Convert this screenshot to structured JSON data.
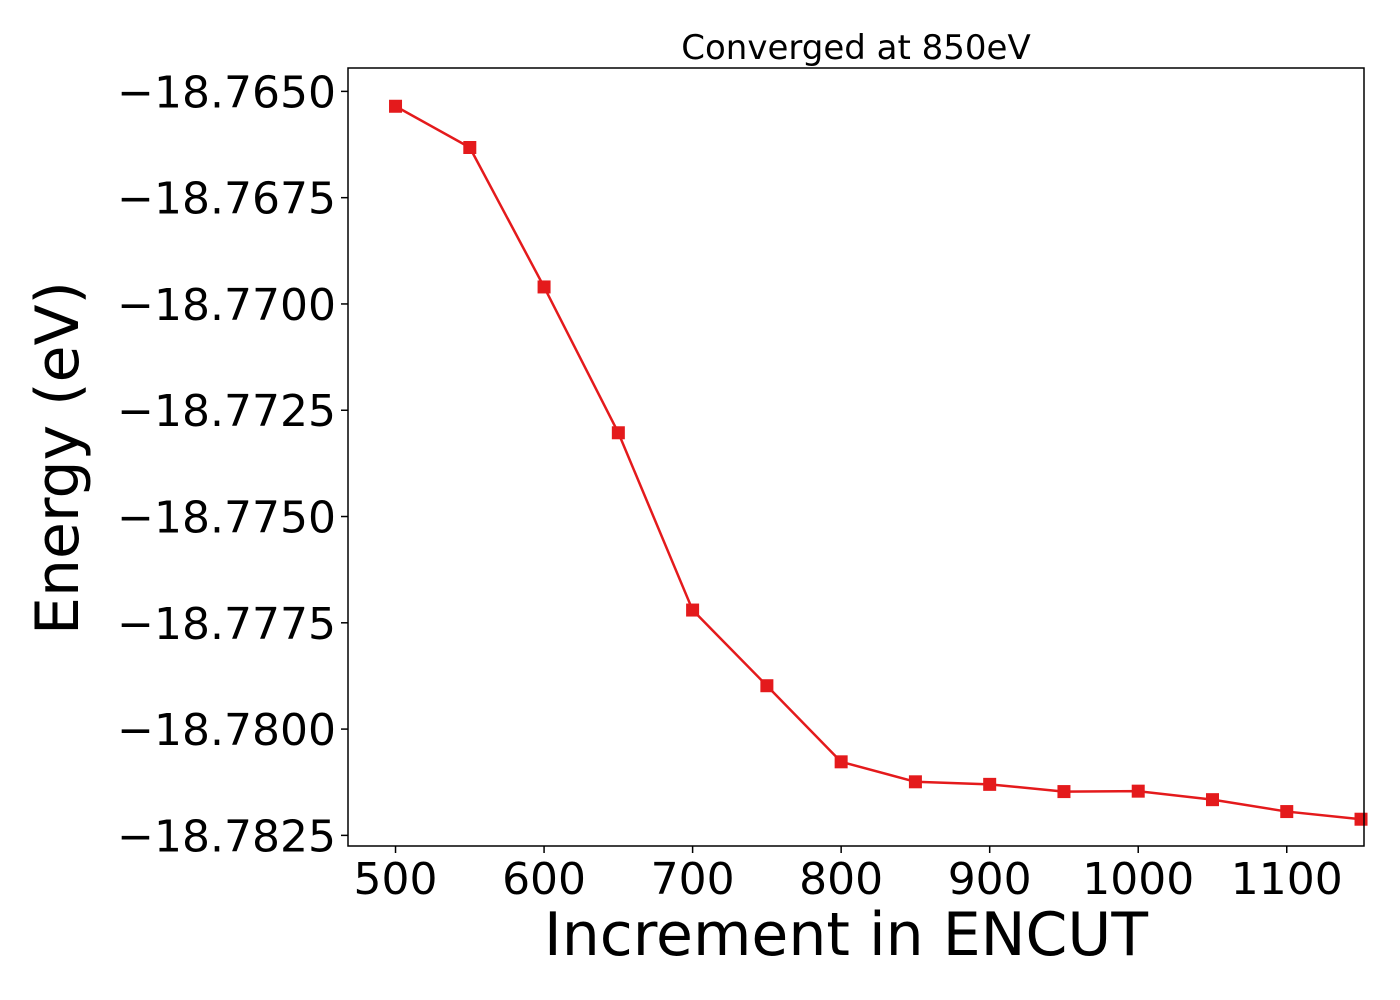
{
  "chart_data": {
    "type": "line",
    "title": "Converged at 850eV",
    "xlabel": "Increment in ENCUT",
    "ylabel": "Energy (eV)",
    "x": [
      500,
      550,
      600,
      650,
      700,
      750,
      800,
      850,
      900,
      950,
      1000,
      1050,
      1100,
      1150
    ],
    "series": [
      {
        "name": "",
        "values": [
          -18.76535,
          -18.76632,
          -18.7696,
          -18.77303,
          -18.7772,
          -18.77898,
          -18.78077,
          -18.78124,
          -18.7813,
          -18.78147,
          -18.78146,
          -18.78166,
          -18.78194,
          -18.78212
        ],
        "color": "#e41a1c",
        "marker": "square"
      }
    ],
    "xlim": [
      468,
      1152
    ],
    "ylim": [
      -18.78275,
      -18.76445
    ],
    "xticks": [
      500,
      600,
      700,
      800,
      900,
      1000,
      1100
    ],
    "xtick_labels": [
      "500",
      "600",
      "700",
      "800",
      "900",
      "1000",
      "1100"
    ],
    "yticks": [
      -18.765,
      -18.7675,
      -18.77,
      -18.7725,
      -18.775,
      -18.7775,
      -18.78,
      -18.7825
    ],
    "ytick_labels": [
      "−18.7650",
      "−18.7675",
      "−18.7700",
      "−18.7725",
      "−18.7750",
      "−18.7775",
      "−18.7800",
      "−18.7825"
    ],
    "grid": false,
    "legend": "none"
  }
}
